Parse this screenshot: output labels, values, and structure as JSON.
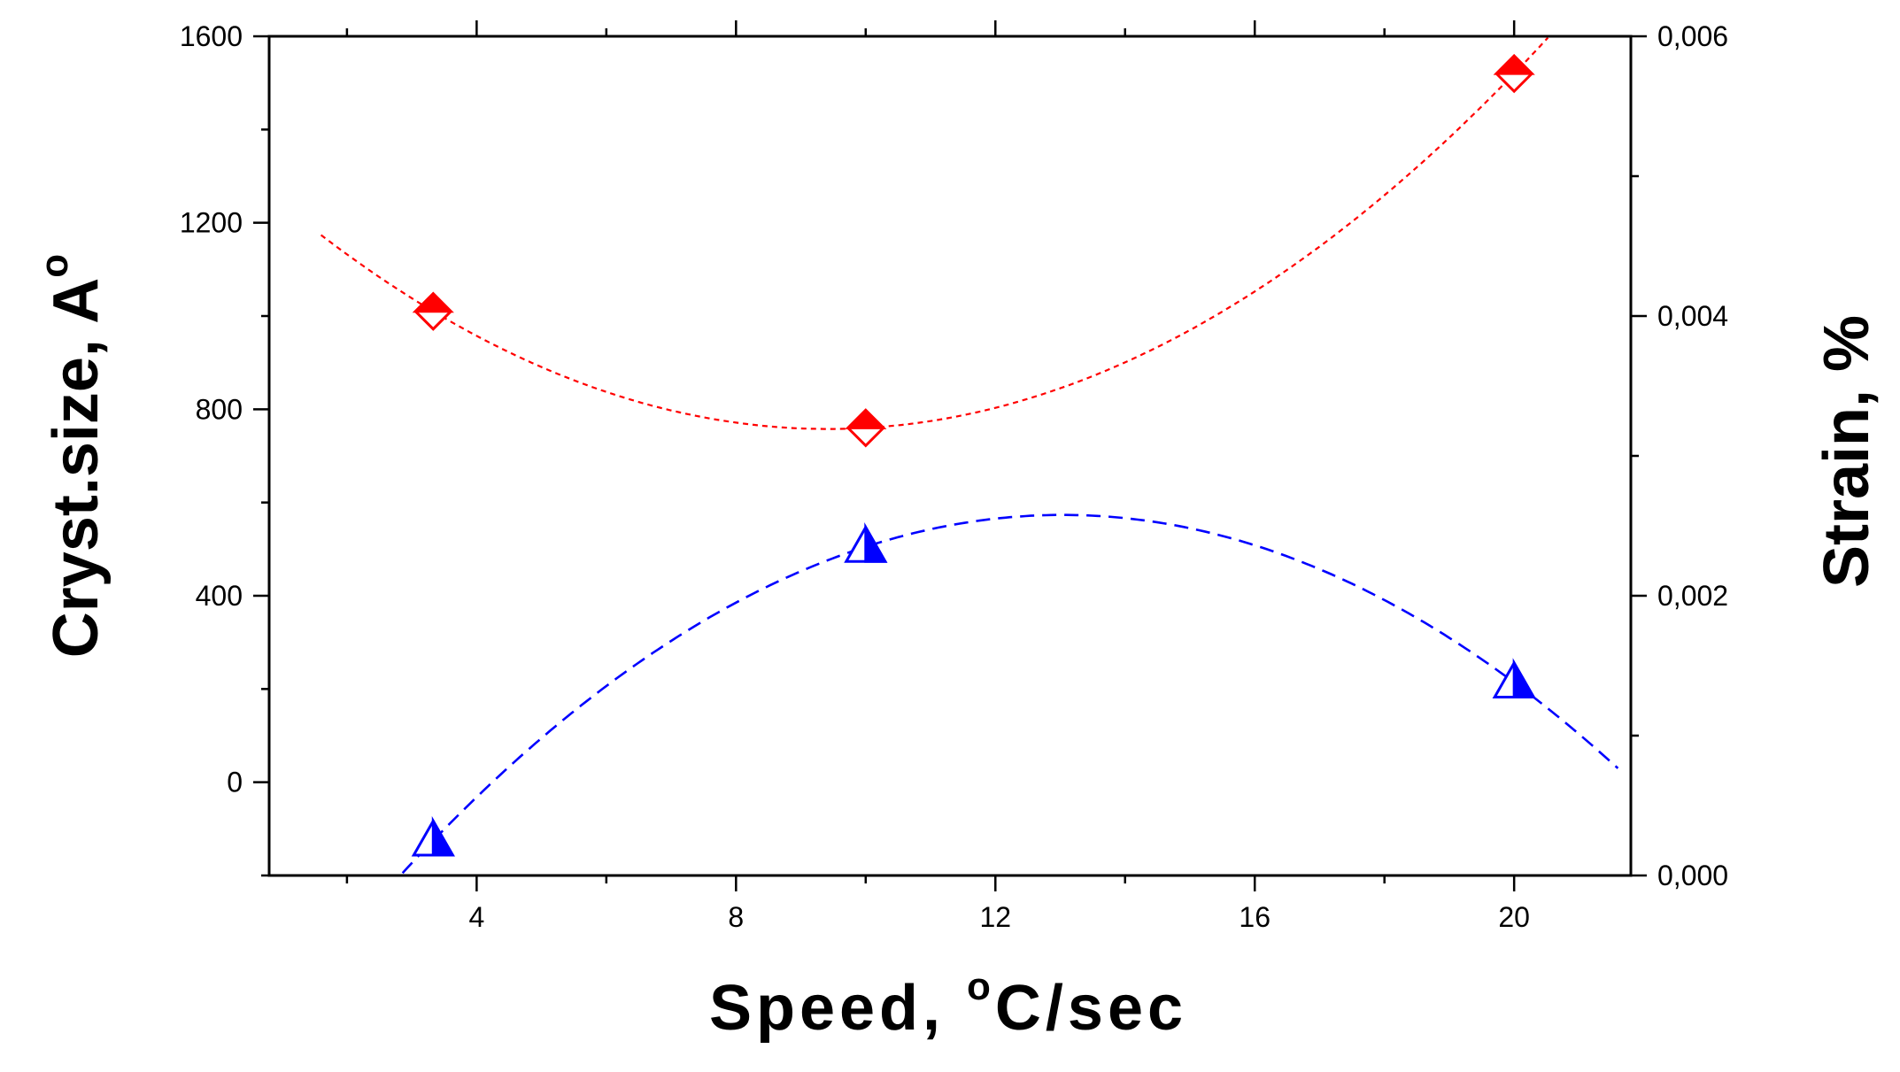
{
  "chart_data": {
    "type": "scatter",
    "xlabel": {
      "prefix": "Speed, ",
      "sup": "o",
      "suffix": "C/sec"
    },
    "ylabel_left": {
      "text": "Cryst.size, A",
      "sup": "o"
    },
    "ylabel_right": "Strain, %",
    "xlim": [
      0.8,
      21.8
    ],
    "ylim_left": [
      -200,
      1600
    ],
    "ylim_right": [
      0.0,
      0.006
    ],
    "x_ticks": [
      4,
      8,
      12,
      16,
      20
    ],
    "x_tick_labels": [
      "4",
      "8",
      "12",
      "16",
      "20"
    ],
    "y_left_ticks": [
      0,
      400,
      800,
      1200,
      1600
    ],
    "y_left_tick_labels": [
      "0",
      "400",
      "800",
      "1200",
      "1600"
    ],
    "y_right_ticks": [
      0.0,
      0.002,
      0.004,
      0.006
    ],
    "y_right_tick_labels": [
      "0,000",
      "0,002",
      "0,004",
      "0,006"
    ],
    "series": [
      {
        "axis": "left",
        "color": "#ff0000",
        "marker": "diamond",
        "x": [
          3.33,
          10,
          20
        ],
        "y": [
          1010,
          760,
          1520
        ],
        "fit": {
          "type": "quadratic",
          "x_range": [
            1.6,
            20.6
          ],
          "dash": "dotted"
        }
      },
      {
        "axis": "right",
        "color": "#0000ff",
        "marker": "triangle",
        "x": [
          3.33,
          10,
          20
        ],
        "y": [
          0.00025,
          0.00235,
          0.00138
        ],
        "fit": {
          "type": "quadratic",
          "x_range": [
            2.7,
            21.6
          ],
          "dash": "dashed"
        }
      }
    ],
    "grid": false,
    "legend": "none"
  }
}
